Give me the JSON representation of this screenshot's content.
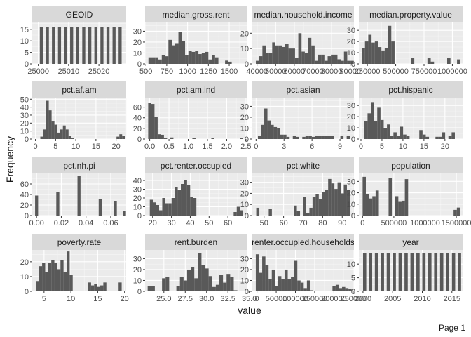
{
  "chart_data": {
    "type": "bar",
    "subtype": "faceted-histogram",
    "xlabel": "value",
    "ylabel": "Frequency",
    "footer": "Page 1",
    "facets": [
      {
        "title": "GEOID",
        "xlim": [
          24998,
          25029
        ],
        "ylim": [
          0,
          18
        ],
        "xticks": [
          25000,
          25010,
          25020
        ],
        "xtick_labels": [
          "25000",
          "25010",
          "25020"
        ],
        "yticks": [
          0,
          5,
          10,
          15
        ],
        "bins": [
          [
            25000.5,
            25001.5,
            16
          ],
          [
            25002.5,
            25003.5,
            16
          ],
          [
            25004.5,
            25005.5,
            16
          ],
          [
            25006.5,
            25007.5,
            16
          ],
          [
            25008.5,
            25009.5,
            16
          ],
          [
            25010.5,
            25011.5,
            16
          ],
          [
            25012.5,
            25013.5,
            16
          ],
          [
            25014.5,
            25015.5,
            16
          ],
          [
            25016.5,
            25017.5,
            16
          ],
          [
            25018.5,
            25019.5,
            16
          ],
          [
            25020.5,
            25021.5,
            16
          ],
          [
            25022.5,
            25023.5,
            16
          ],
          [
            25024.5,
            25025.5,
            16
          ],
          [
            25026.5,
            25027.5,
            16
          ]
        ]
      },
      {
        "title": "median.gross.rent",
        "xlim": [
          490,
          1710
        ],
        "ylim": [
          0,
          38
        ],
        "xticks": [
          500,
          750,
          1000,
          1250,
          1500
        ],
        "xtick_labels": [
          "500",
          "750",
          "1000",
          "1250",
          "1500"
        ],
        "yticks": [
          0,
          10,
          20,
          30
        ],
        "values": [
          6,
          6,
          6,
          4,
          8,
          7,
          22,
          17,
          19,
          29,
          21,
          8,
          12,
          11,
          12,
          9,
          10,
          11,
          4,
          8,
          6,
          0,
          0,
          3,
          2,
          0,
          0,
          0
        ],
        "bin_start": 530,
        "bin_width": 40
      },
      {
        "title": "median.household.income",
        "xlim": [
          37500,
          92000
        ],
        "ylim": [
          0,
          27
        ],
        "xticks": [
          40000,
          50000,
          60000,
          70000,
          80000,
          90000
        ],
        "xtick_labels": [
          "40000",
          "50000",
          "60000",
          "70000",
          "80000",
          "90000"
        ],
        "yticks": [
          0,
          10,
          20
        ],
        "values": [
          2,
          5,
          12,
          7,
          7,
          14,
          12,
          12,
          11,
          13,
          10,
          10,
          4,
          20,
          8,
          7,
          17,
          12,
          2,
          6,
          6,
          2,
          5,
          6,
          6,
          3,
          2,
          8,
          2,
          2
        ],
        "bin_start": 39400,
        "bin_width": 1750
      },
      {
        "title": "median.property.value",
        "xlim": [
          175000,
          1090000
        ],
        "ylim": [
          0,
          37
        ],
        "xticks": [
          250000,
          500000,
          750000,
          1000000
        ],
        "xtick_labels": [
          "250000",
          "500000",
          "750000",
          "1000000"
        ],
        "yticks": [
          0,
          10,
          20,
          30
        ],
        "values": [
          14,
          20,
          26,
          19,
          20,
          15,
          12,
          14,
          34,
          20,
          0,
          0,
          0,
          0,
          0,
          5,
          0,
          0,
          0,
          0,
          5,
          2,
          0,
          0,
          0,
          0,
          5,
          0,
          0,
          4
        ],
        "bin_start": 200000,
        "bin_width": 29000
      },
      {
        "title": "pct.af.am",
        "xlim": [
          -0.8,
          22.5
        ],
        "ylim": [
          0,
          52
        ],
        "xticks": [
          0,
          5,
          10,
          15,
          20
        ],
        "xtick_labels": [
          "0",
          "5",
          "10",
          "15",
          "20"
        ],
        "yticks": [
          0,
          10,
          20,
          30,
          40,
          50
        ],
        "values": [
          3,
          12,
          48,
          36,
          22,
          18,
          8,
          12,
          17,
          12,
          4,
          1,
          0,
          0,
          0,
          0,
          0,
          0,
          0,
          0,
          0,
          0,
          0,
          0,
          0,
          0,
          0,
          3,
          6,
          4
        ],
        "bin_start": 1.2,
        "bin_width": 0.7
      },
      {
        "title": "pct.am.ind",
        "xlim": [
          -0.12,
          2.52
        ],
        "ylim": [
          0,
          78
        ],
        "xticks": [
          0,
          0.5,
          1,
          1.5,
          2,
          2.5
        ],
        "xtick_labels": [
          "0.0",
          "0.5",
          "1.0",
          "1.5",
          "2.0",
          "2.5"
        ],
        "yticks": [
          0,
          20,
          40,
          60
        ],
        "values": [
          68,
          66,
          42,
          9,
          8,
          2,
          0,
          3,
          0,
          0,
          0,
          0,
          0,
          0,
          2,
          0,
          0,
          0,
          0,
          0,
          2,
          0,
          0,
          0,
          0,
          0,
          0,
          0,
          0,
          2
        ],
        "bin_start": -0.04,
        "bin_width": 0.082
      },
      {
        "title": "pct.asian",
        "xlim": [
          -0.4,
          10.5
        ],
        "ylim": [
          0,
          38
        ],
        "xticks": [
          0,
          3,
          6,
          9
        ],
        "xtick_labels": [
          "0",
          "3",
          "6",
          "9"
        ],
        "yticks": [
          0,
          10,
          20,
          30
        ],
        "values": [
          3,
          13,
          28,
          17,
          13,
          11,
          10,
          4,
          4,
          2,
          0,
          3,
          2,
          0,
          2,
          3,
          3,
          2,
          3,
          3,
          3,
          3,
          3,
          3,
          0,
          0,
          3,
          0,
          3,
          0
        ],
        "bin_start": 0.2,
        "bin_width": 0.34
      },
      {
        "title": "pct.hispanic",
        "xlim": [
          -0.5,
          24.2
        ],
        "ylim": [
          0,
          37
        ],
        "xticks": [
          0,
          5,
          10,
          15,
          20
        ],
        "xtick_labels": [
          "0",
          "5",
          "10",
          "15",
          "20"
        ],
        "yticks": [
          0,
          10,
          20,
          30
        ],
        "values": [
          16,
          23,
          33,
          16,
          28,
          17,
          10,
          13,
          3,
          6,
          3,
          11,
          4,
          3,
          0,
          0,
          0,
          8,
          4,
          2,
          0,
          0,
          2,
          2,
          6,
          0,
          3,
          6,
          0,
          0
        ],
        "bin_start": 0.8,
        "bin_width": 0.77
      },
      {
        "title": "pct.nh.pi",
        "xlim": [
          -0.0035,
          0.0725
        ],
        "ylim": [
          0,
          80
        ],
        "xticks": [
          0,
          0.02,
          0.04,
          0.06
        ],
        "xtick_labels": [
          "0.00",
          "0.02",
          "0.04",
          "0.06"
        ],
        "yticks": [
          0,
          20,
          40,
          60
        ],
        "values": [
          38,
          0,
          0,
          0,
          0,
          0,
          0,
          45,
          0,
          0,
          0,
          0,
          0,
          0,
          75,
          0,
          0,
          0,
          0,
          0,
          0,
          31,
          0,
          0,
          0,
          0,
          27,
          0,
          0,
          8
        ],
        "bin_start": -0.0012,
        "bin_width": 0.00245
      },
      {
        "title": "pct.renter.occupied",
        "xlim": [
          16,
          70
        ],
        "ylim": [
          0,
          48
        ],
        "xticks": [
          20,
          30,
          40,
          50,
          60
        ],
        "xtick_labels": [
          "20",
          "30",
          "40",
          "50",
          "60"
        ],
        "yticks": [
          0,
          10,
          20,
          30,
          40
        ],
        "values": [
          18,
          15,
          12,
          6,
          20,
          14,
          14,
          20,
          32,
          29,
          36,
          40,
          35,
          21,
          20,
          0,
          0,
          0,
          0,
          0,
          0,
          0,
          0,
          0,
          0,
          0,
          0,
          4,
          10,
          6
        ],
        "bin_start": 18.5,
        "bin_width": 1.65
      },
      {
        "title": "pct.white",
        "xlim": [
          44,
          96
        ],
        "ylim": [
          0,
          38
        ],
        "xticks": [
          50,
          60,
          70,
          80,
          90
        ],
        "xtick_labels": [
          "50",
          "60",
          "70",
          "80",
          "90"
        ],
        "yticks": [
          0,
          10,
          20,
          30
        ],
        "values": [
          7,
          0,
          0,
          0,
          6,
          0,
          0,
          0,
          0,
          0,
          0,
          0,
          9,
          4,
          0,
          17,
          2,
          7,
          17,
          19,
          15,
          21,
          23,
          33,
          29,
          24,
          30,
          20,
          28,
          23
        ],
        "bin_start": 46,
        "bin_width": 1.6
      },
      {
        "title": "population",
        "xlim": [
          -60000,
          1600000
        ],
        "ylim": [
          0,
          37
        ],
        "xticks": [
          0,
          500000,
          1000000,
          1500000
        ],
        "xtick_labels": [
          "0",
          "500000",
          "1000000",
          "1500000"
        ],
        "yticks": [
          0,
          10,
          20,
          30
        ],
        "values": [
          34,
          19,
          15,
          17,
          22,
          0,
          0,
          0,
          33,
          0,
          17,
          12,
          13,
          32,
          0,
          0,
          0,
          0,
          0,
          0,
          0,
          0,
          0,
          0,
          0,
          0,
          0,
          0,
          5,
          7
        ],
        "bin_start": 0,
        "bin_width": 52000
      },
      {
        "title": "poverty.rate",
        "xlim": [
          2.8,
          20.3
        ],
        "ylim": [
          0,
          28
        ],
        "xticks": [
          5,
          10,
          15,
          20
        ],
        "xtick_labels": [
          "5",
          "10",
          "15",
          "20"
        ],
        "yticks": [
          0,
          10,
          20
        ],
        "values": [
          7,
          17,
          19,
          13,
          19,
          21,
          19,
          15,
          21,
          13,
          27,
          11,
          0,
          0,
          0,
          0,
          0,
          6,
          4,
          5,
          3,
          4,
          6,
          0,
          0,
          0,
          0,
          6,
          0,
          0
        ],
        "bin_start": 3.5,
        "bin_width": 0.57
      },
      {
        "title": "rent.burden",
        "xlim": [
          22.8,
          34.7
        ],
        "ylim": [
          0,
          38
        ],
        "xticks": [
          25,
          27.5,
          30,
          32.5,
          35
        ],
        "xtick_labels": [
          "25.0",
          "27.5",
          "30.0",
          "32.5",
          "35.0"
        ],
        "yticks": [
          0,
          10,
          20,
          30
        ],
        "values": [
          5,
          5,
          0,
          0,
          12,
          13,
          0,
          0,
          5,
          13,
          10,
          20,
          22,
          12,
          35,
          24,
          21,
          14,
          4,
          6,
          15,
          8,
          16,
          13,
          1
        ],
        "bin_start": 23.1,
        "bin_width": 0.42
      },
      {
        "title": "renter.occupied.households",
        "xlim": [
          -12000,
          252000
        ],
        "ylim": [
          0,
          38
        ],
        "xticks": [
          0,
          50000,
          100000,
          150000,
          200000,
          250000
        ],
        "xtick_labels": [
          "0",
          "50000",
          "100000",
          "150000",
          "200000",
          "250000"
        ],
        "yticks": [
          0,
          10,
          20,
          30
        ],
        "values": [
          34,
          17,
          32,
          24,
          11,
          20,
          5,
          14,
          11,
          20,
          11,
          13,
          28,
          10,
          8,
          3,
          10,
          1,
          0,
          0,
          0,
          0,
          0,
          0,
          5,
          6,
          3,
          4,
          3,
          2
        ],
        "bin_start": -3000,
        "bin_width": 8300
      },
      {
        "title": "year",
        "xlim": [
          1999.3,
          2016.8
        ],
        "ylim": [
          0,
          15.2
        ],
        "xticks": [
          2000,
          2005,
          2010,
          2015
        ],
        "xtick_labels": [
          "2000",
          "2005",
          "2010",
          "2015"
        ],
        "yticks": [
          0,
          5,
          10
        ],
        "bins": [
          [
            2000,
            2000.55,
            14
          ],
          [
            2001,
            2001.55,
            14
          ],
          [
            2002,
            2002.55,
            14
          ],
          [
            2003,
            2003.55,
            14
          ],
          [
            2004,
            2004.55,
            14
          ],
          [
            2005,
            2005.55,
            14
          ],
          [
            2006,
            2006.55,
            14
          ],
          [
            2007,
            2007.55,
            14
          ],
          [
            2008,
            2008.55,
            14
          ],
          [
            2009,
            2009.55,
            14
          ],
          [
            2010,
            2010.55,
            14
          ],
          [
            2011,
            2011.55,
            14
          ],
          [
            2012,
            2012.55,
            14
          ],
          [
            2013,
            2013.55,
            14
          ],
          [
            2014,
            2014.55,
            14
          ],
          [
            2015,
            2015.55,
            14
          ],
          [
            2016,
            2016.55,
            14
          ]
        ]
      }
    ]
  },
  "colors": {
    "panel_bg": "#ebebeb",
    "strip_bg": "#d9d9d9",
    "grid_major": "#ffffff",
    "grid_minor": "#f5f5f5",
    "bar_fill": "#595959",
    "text": "#1a1a1a",
    "tick_text": "#4d4d4d"
  }
}
